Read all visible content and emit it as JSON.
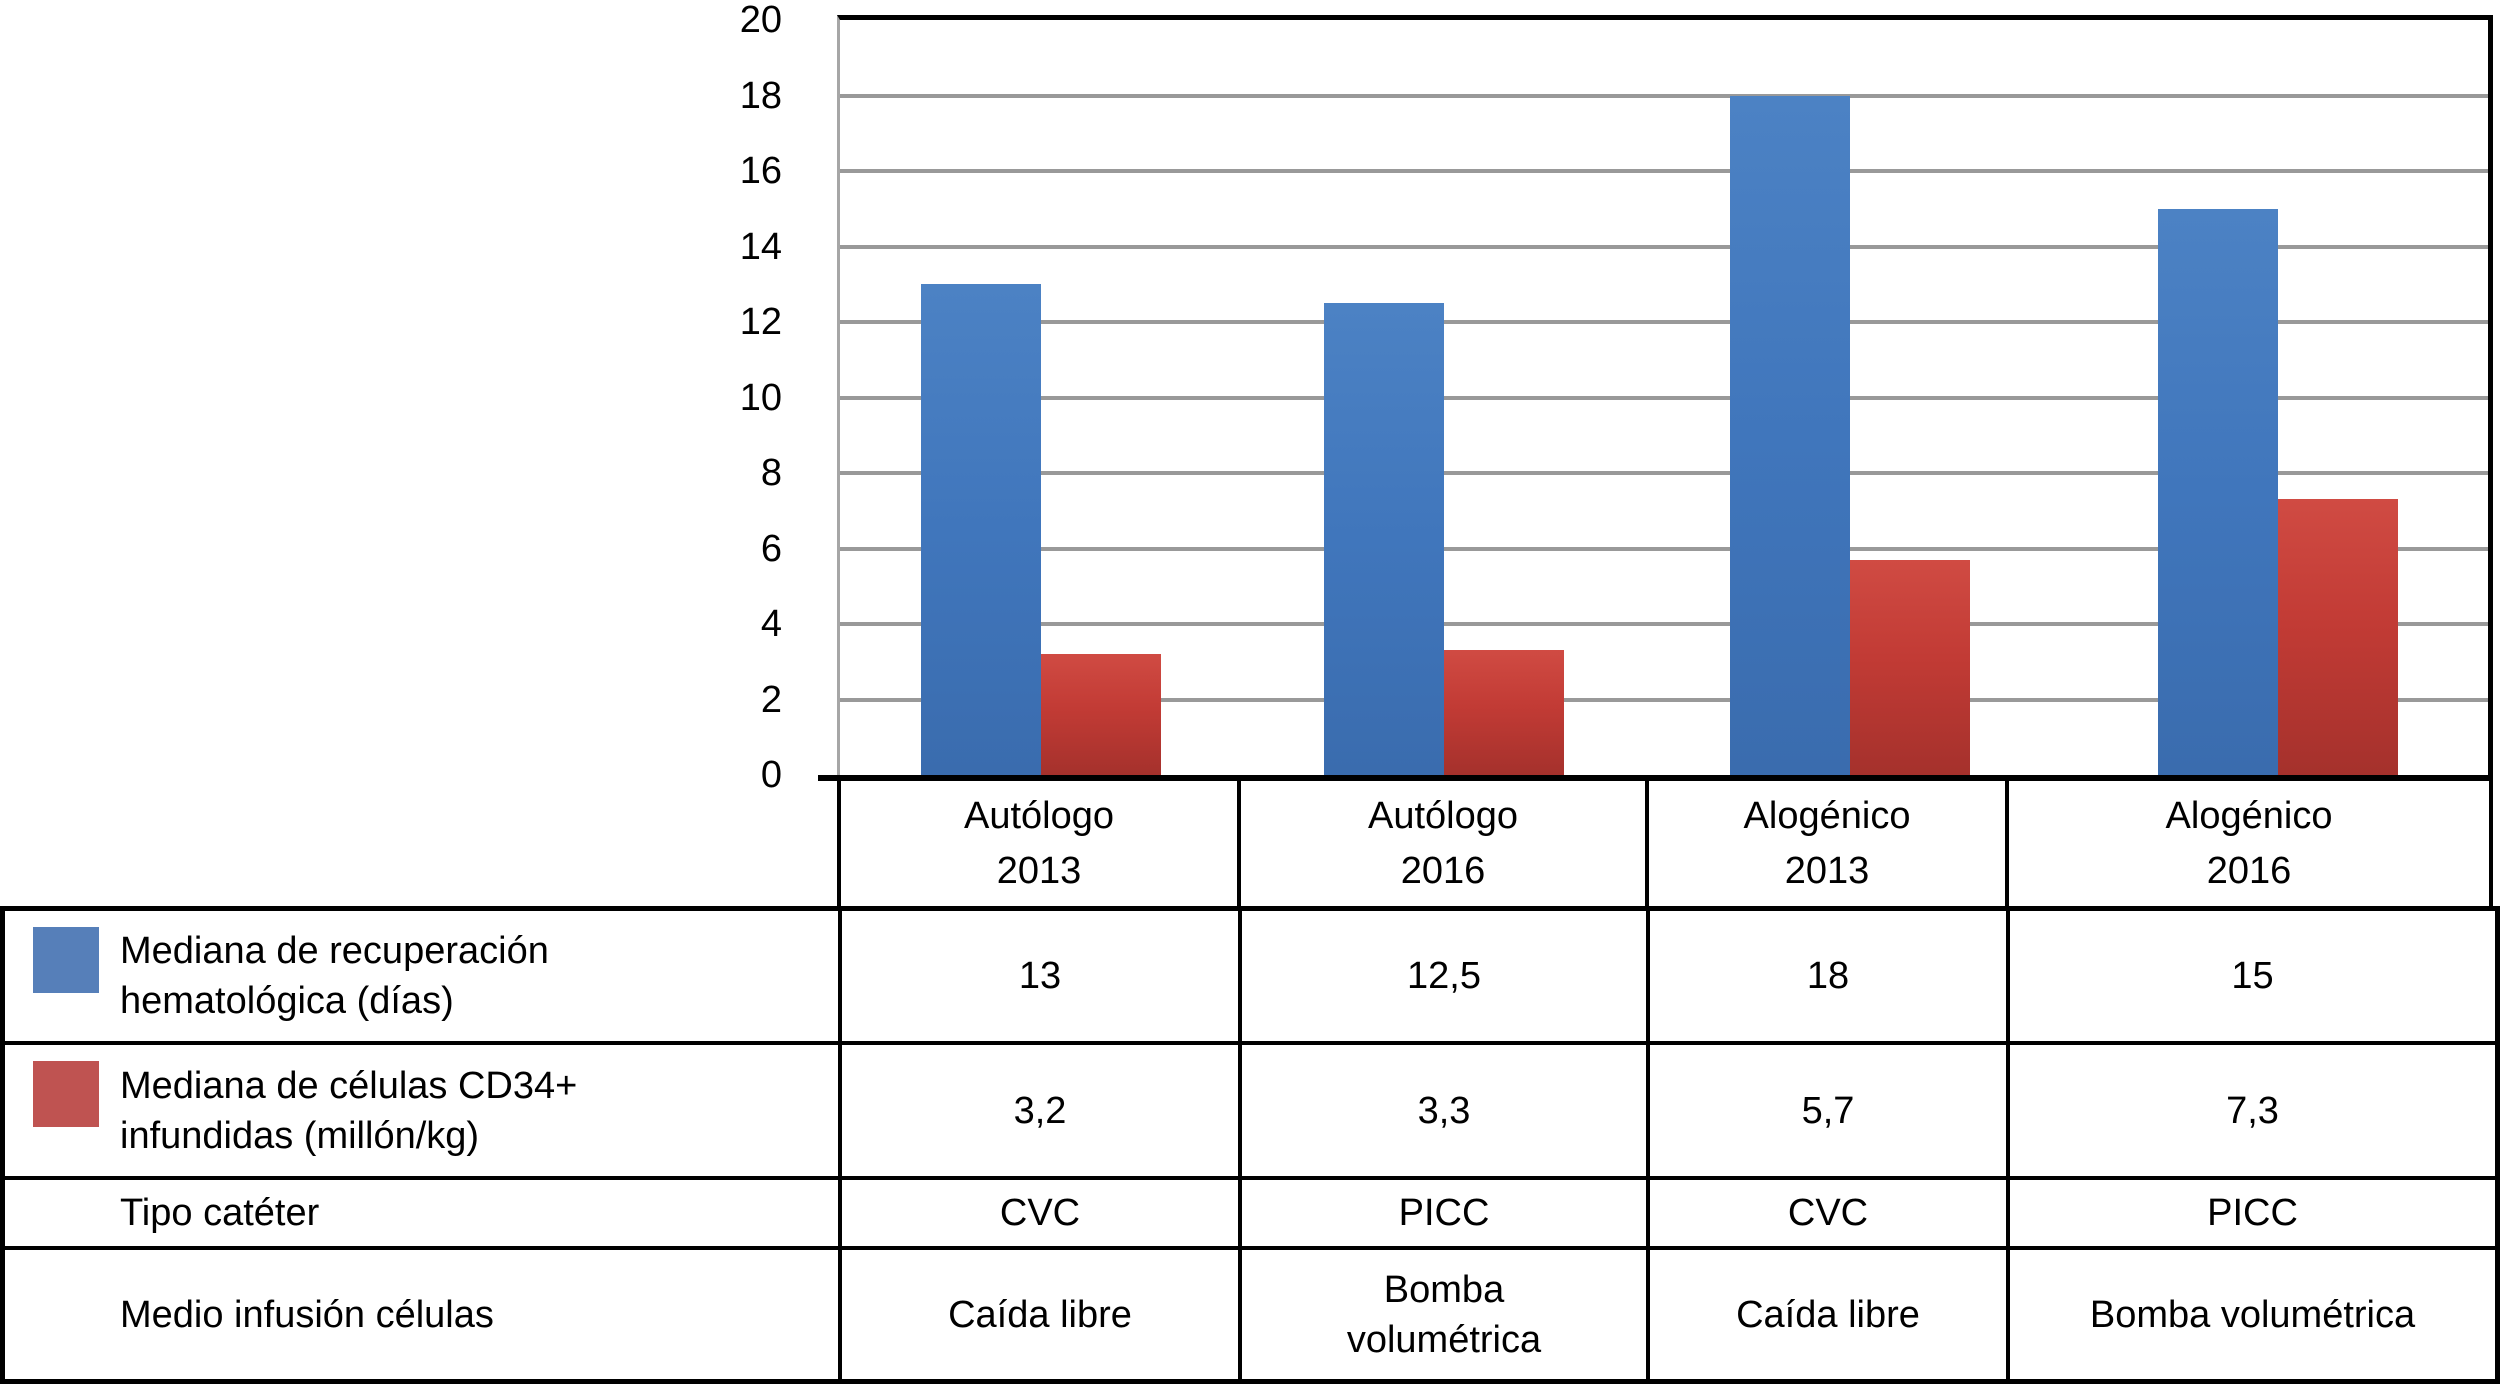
{
  "chart_data": {
    "type": "bar",
    "categories": [
      "Autólogo 2013",
      "Autólogo 2016",
      "Alogénico 2013",
      "Alogénico 2016"
    ],
    "series": [
      {
        "name": "Mediana de recuperación hematológica (días)",
        "color": "#4076bc",
        "values": [
          13,
          12.5,
          18,
          15
        ]
      },
      {
        "name": "Mediana de células CD34+ infundidas (millón/kg)",
        "color": "#c23b35",
        "values": [
          3.2,
          3.3,
          5.7,
          7.3
        ]
      }
    ],
    "title": "",
    "xlabel": "",
    "ylabel": "",
    "ylim": [
      0,
      20
    ],
    "ytick_step": 2,
    "ytick_labels": [
      "0",
      "2",
      "4",
      "6",
      "8",
      "10",
      "12",
      "14",
      "16",
      "18",
      "20"
    ],
    "grid": true,
    "gridline_color": "#999999",
    "legend_position": "table-left"
  },
  "category_headers": [
    [
      "Autólogo",
      "2013"
    ],
    [
      "Autólogo",
      "2016"
    ],
    [
      "Alogénico",
      "2013"
    ],
    [
      "Alogénico",
      "2016"
    ]
  ],
  "table": {
    "rows": [
      {
        "label_lines": [
          "Mediana de recuperación",
          "hematológica (días)"
        ],
        "swatch_color": "#567fb9",
        "cells": [
          [
            "13"
          ],
          [
            "12,5"
          ],
          [
            "18"
          ],
          [
            "15"
          ]
        ]
      },
      {
        "label_lines": [
          "Mediana de células CD34+",
          "infundidas (millón/kg)"
        ],
        "swatch_color": "#bf5351",
        "cells": [
          [
            "3,2"
          ],
          [
            "3,3"
          ],
          [
            "5,7"
          ],
          [
            "7,3"
          ]
        ]
      },
      {
        "label_lines": [
          "Tipo catéter"
        ],
        "swatch_color": null,
        "cells": [
          [
            "CVC"
          ],
          [
            "PICC"
          ],
          [
            "CVC"
          ],
          [
            "PICC"
          ]
        ]
      },
      {
        "label_lines": [
          "Medio infusión células"
        ],
        "swatch_color": null,
        "cells": [
          [
            "Caída libre"
          ],
          [
            "Bomba",
            "volumétrica"
          ],
          [
            "Caída libre"
          ],
          [
            "Bomba volumétrica"
          ]
        ]
      }
    ]
  },
  "colors": {
    "bar_blue": "#4076bc",
    "bar_red": "#c23b35",
    "legend_blue": "#567fb9",
    "legend_red": "#bf5351",
    "gridline": "#999999",
    "axis_black": "#000000"
  }
}
